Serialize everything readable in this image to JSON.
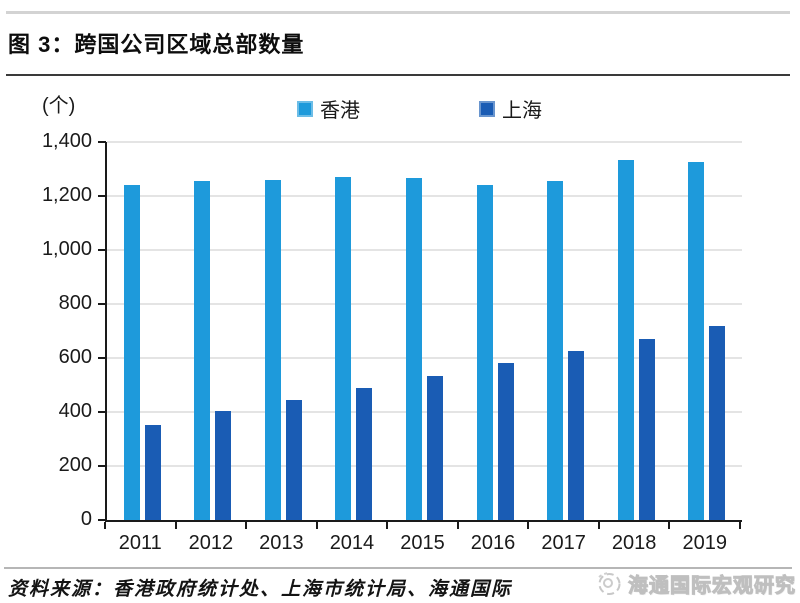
{
  "title": "图 3：跨国公司区域总部数量",
  "unit_label": "(个)",
  "legend": [
    {
      "label": "香港",
      "color": "#1E9ADB"
    },
    {
      "label": "上海",
      "color": "#1A5CB4"
    }
  ],
  "chart_data": {
    "type": "bar",
    "title": "图 3：跨国公司区域总部数量",
    "ylabel": "(个)",
    "categories": [
      "2011",
      "2012",
      "2013",
      "2014",
      "2015",
      "2016",
      "2017",
      "2018",
      "2019"
    ],
    "series": [
      {
        "name": "香港",
        "color": "#1E9ADB",
        "values": [
          1240,
          1255,
          1260,
          1270,
          1265,
          1240,
          1255,
          1335,
          1325
        ]
      },
      {
        "name": "上海",
        "color": "#1A5CB4",
        "values": [
          353,
          403,
          445,
          490,
          535,
          580,
          625,
          670,
          720
        ]
      }
    ],
    "ylim": [
      0,
      1400
    ],
    "ytick_interval": 200,
    "ytick_labels": [
      "0",
      "200",
      "400",
      "600",
      "800",
      "1,000",
      "1,200",
      "1,400"
    ],
    "grid": true,
    "legend_position": "top"
  },
  "footer": {
    "source": "资料来源：香港政府统计处、上海市统计局、海通国际",
    "watermark": "海通国际宏观研究"
  },
  "colors": {
    "hongkong": "#1E9ADB",
    "shanghai": "#1A5CB4",
    "gridline": "#E4E4E4",
    "axis": "#1A1A1A",
    "divider_top": "#D3D3D3",
    "divider_title": "#3A3A3A",
    "divider_footer": "#B6B6B6",
    "watermark_gray": "#C8C8C8"
  }
}
